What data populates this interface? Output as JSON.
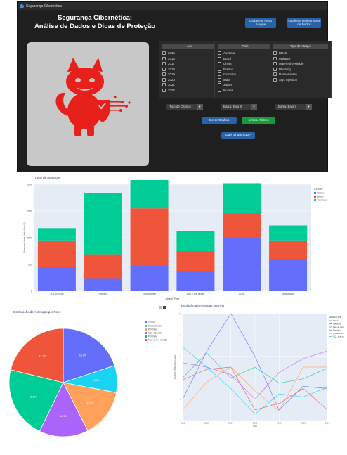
{
  "window": {
    "title": "Segurança Cibernética"
  },
  "app": {
    "title_line1": "Segurança Cibernética:",
    "title_line2": "Análise de Dados e Dicas de Proteção"
  },
  "buttons": {
    "register": "Cadastrar Novo Ataque",
    "update": "Atualizar/ Deletar Base de Dados",
    "generate": "Gerar Gráfico",
    "clear": "Limpar Filtros",
    "quiz": "Que tal um quiz?"
  },
  "filters": {
    "year": {
      "header": "Ano",
      "items": [
        "2015",
        "2016",
        "2017",
        "2018",
        "2019",
        "2020",
        "2021",
        "2022"
      ]
    },
    "country": {
      "header": "País",
      "items": [
        "Australia",
        "Brazil",
        "China",
        "France",
        "Germany",
        "India",
        "Japan",
        "Russia"
      ]
    },
    "attack": {
      "header": "Tipo de Ataque",
      "items": [
        "DDoS",
        "Malware",
        "Man-in-the-Middle",
        "Phishing",
        "Ransomware",
        "SQL Injection"
      ]
    }
  },
  "dropdowns": {
    "chart_type": "Tipo de Gráfico",
    "x_axis": "Barra: Eixo X",
    "y_axis": "Barra: Eixo Y"
  },
  "colors": {
    "blue": "#636efa",
    "red": "#ef553b",
    "green": "#00cc96",
    "purple": "#ab63fa",
    "orange": "#ffa15a",
    "cyan": "#19d3f3",
    "logo_red": "#e8201c"
  },
  "chart_data": [
    {
      "type": "bar",
      "title": "Tipos de Ameaças",
      "xlabel": "Attack Type",
      "ylabel": "Financial Loss (in Million $)",
      "categories": [
        "SQL Injection",
        "Phishing",
        "Ransomware",
        "Man-in-the-Middle",
        "DDoS",
        "Ransomware"
      ],
      "series": [
        {
          "name": "China",
          "values": [
            460,
            230,
            480,
            370,
            1000,
            600
          ]
        },
        {
          "name": "Brazil",
          "values": [
            490,
            460,
            1070,
            380,
            460,
            350
          ]
        },
        {
          "name": "Australia",
          "values": [
            230,
            1140,
            570,
            380,
            560,
            280
          ]
        }
      ],
      "ylim": [
        0,
        2000
      ],
      "yticks": [
        "0",
        "500",
        "1000",
        "1500",
        "2000"
      ],
      "legend_title": "Country"
    },
    {
      "type": "pie",
      "title": "Distribuição de Ameaças por País",
      "labels": [
        "DDoS",
        "Ransomware",
        "Phishing",
        "SQL Injection",
        "Phishing",
        "Man-in-the-Middle"
      ],
      "values": [
        19.9,
        8.1,
        14.5,
        14.7,
        21.6,
        21.2
      ],
      "slice_labels": [
        "19.9%",
        "8.1%",
        "14.5%",
        "14.7%",
        "21.6%",
        "21.2%"
      ]
    },
    {
      "type": "line",
      "title": "Evolução de Ameaças por Ano",
      "xlabel": "Ano",
      "ylabel": "Number of Affected Users",
      "x": [
        "2015",
        "2016",
        "2017",
        "2018",
        "2019",
        "2020",
        "2021"
      ],
      "series": [
        {
          "name": "DDoS",
          "values": [
            2,
            6.5,
            10,
            6,
            1,
            3.2,
            3
          ]
        },
        {
          "name": "Malware",
          "values": [
            3.8,
            4.8,
            5,
            1,
            1.6,
            3,
            1
          ]
        },
        {
          "name": "Man-in-the-Middle",
          "values": [
            4,
            6.3,
            4,
            5,
            3.5,
            3.9,
            4.9
          ]
        },
        {
          "name": "Phishing",
          "values": [
            5.4,
            5,
            4.3,
            2,
            4.5,
            5.8,
            6.5
          ]
        },
        {
          "name": "Ransomware",
          "values": [
            1,
            3.6,
            5,
            2.8,
            0.9,
            5,
            5
          ]
        },
        {
          "name": "SQL Injection",
          "values": [
            6.9,
            5,
            3,
            0.6,
            2.5,
            2.2,
            3.1
          ]
        }
      ],
      "ylim": [
        0,
        10
      ],
      "yticks": [
        "0",
        "2",
        "4",
        "6",
        "8",
        "10"
      ],
      "legend_title": "Attack Type"
    }
  ]
}
